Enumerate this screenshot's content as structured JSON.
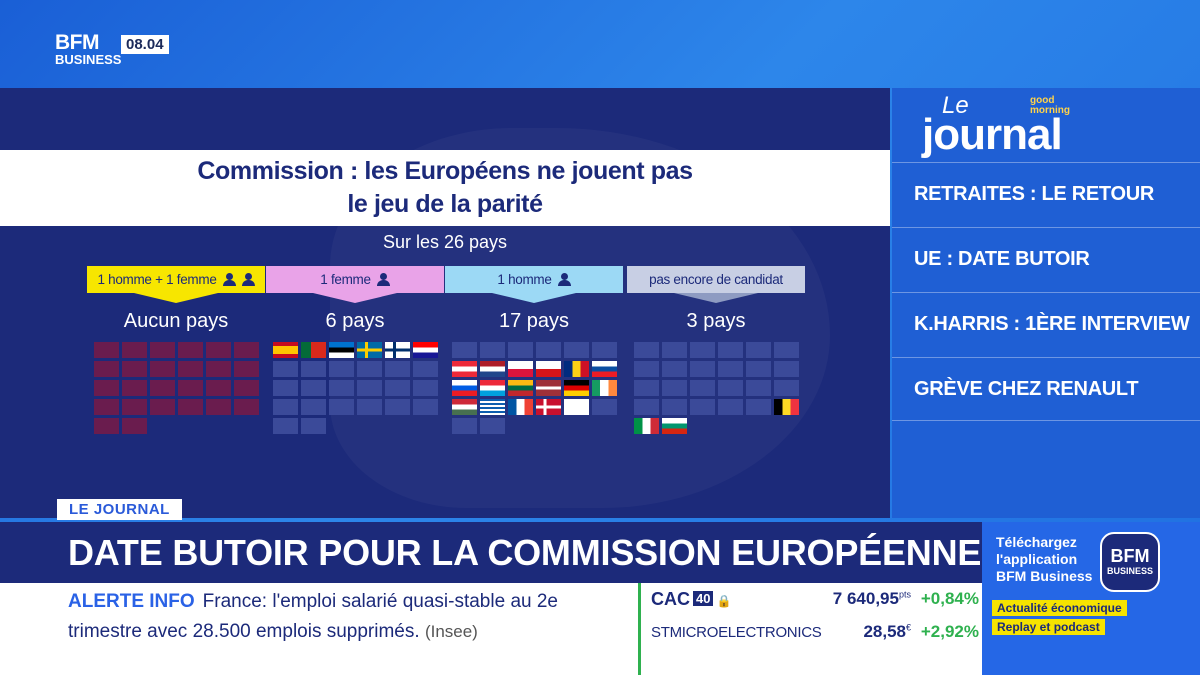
{
  "channel": {
    "logo": "BFM",
    "logo_sub": "BUSINESS",
    "time": "08.04"
  },
  "graphic": {
    "title_line1": "Commission : les Européens ne jouent pas",
    "title_line2": "le jeu de la parité",
    "subtitle": "Sur les 26 pays",
    "categories": [
      {
        "label": "1 homme + 1 femme",
        "count": "Aucun pays",
        "bg": "#f7e600",
        "arrow": "#f7e600"
      },
      {
        "label": "1 femme",
        "count": "6 pays",
        "bg": "#e9a3e8",
        "arrow": "#e9a3e8"
      },
      {
        "label": "1 homme",
        "count": "17 pays",
        "bg": "#9cd9f5",
        "arrow": "#9cd9f5"
      },
      {
        "label": "pas encore de candidat",
        "count": "3 pays",
        "bg": "#c8cfe4",
        "arrow": "#8e9bc2"
      }
    ]
  },
  "sidebar": {
    "le": "Le",
    "journal": "journal",
    "badge": "good morning",
    "items": [
      "RETRAITES : LE RETOUR",
      "UE : DATE BUTOIR",
      "K.HARRIS : 1ÈRE INTERVIEW",
      "GRÈVE CHEZ RENAULT"
    ]
  },
  "headline": {
    "tag": "LE JOURNAL",
    "text": "DATE BUTOIR POUR LA COMMISSION EUROPÉENNE"
  },
  "alert": {
    "label": "ALERTE INFO",
    "line1": "France: l'emploi salarié quasi-stable au 2e",
    "line2": "trimestre avec 28.500 emplois supprimés.",
    "source": "(Insee)"
  },
  "market": {
    "index_name": "CAC",
    "index_num": "40",
    "index_value": "7 640,95",
    "index_unit": "pts",
    "index_change": "+0,84%",
    "stock_name": "STMICROELECTRONICS",
    "stock_value": "28,58",
    "stock_unit": "€",
    "stock_change": "+2,92%"
  },
  "promo": {
    "line1": "Téléchargez",
    "line2": "l'application",
    "line3": "BFM Business",
    "chip1": "Actualité économique",
    "chip2": "Replay et podcast",
    "app_logo": "BFM",
    "app_sub": "BUSINESS"
  },
  "colors": {
    "panel": "#1c2a7a",
    "maroon": "#6a1c4e",
    "slate": "#3b4a99",
    "accent": "#2a62e6"
  }
}
